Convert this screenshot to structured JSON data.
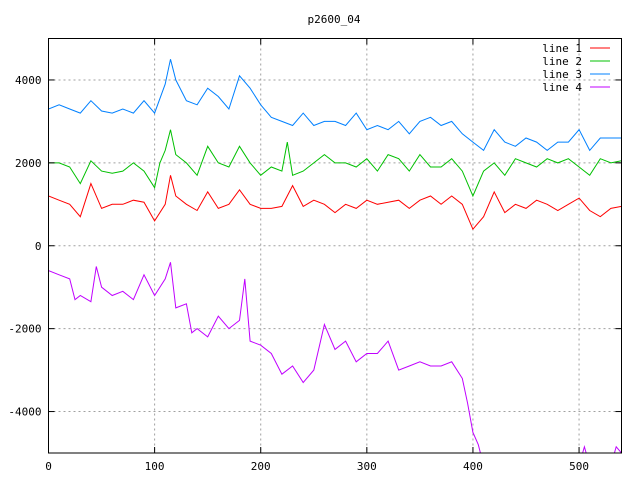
{
  "chart_data": {
    "type": "line",
    "title": "p2600_04",
    "xlabel": "",
    "ylabel": "",
    "xlim": [
      0,
      540
    ],
    "ylim": [
      -5000,
      5000
    ],
    "xticks": [
      0,
      100,
      200,
      300,
      400,
      500
    ],
    "yticks": [
      -4000,
      -2000,
      0,
      2000,
      4000
    ],
    "grid": true,
    "legend_position": "top-right",
    "series": [
      {
        "name": "line 1",
        "color": "#ff0000",
        "points": [
          [
            0,
            1200
          ],
          [
            10,
            1100
          ],
          [
            20,
            1000
          ],
          [
            30,
            700
          ],
          [
            40,
            1500
          ],
          [
            50,
            900
          ],
          [
            60,
            1000
          ],
          [
            70,
            1000
          ],
          [
            80,
            1100
          ],
          [
            90,
            1050
          ],
          [
            100,
            600
          ],
          [
            110,
            1000
          ],
          [
            115,
            1700
          ],
          [
            120,
            1200
          ],
          [
            130,
            1000
          ],
          [
            140,
            850
          ],
          [
            150,
            1300
          ],
          [
            160,
            900
          ],
          [
            170,
            1000
          ],
          [
            180,
            1350
          ],
          [
            190,
            1000
          ],
          [
            200,
            900
          ],
          [
            210,
            900
          ],
          [
            220,
            950
          ],
          [
            230,
            1450
          ],
          [
            240,
            950
          ],
          [
            250,
            1100
          ],
          [
            260,
            1000
          ],
          [
            270,
            800
          ],
          [
            280,
            1000
          ],
          [
            290,
            900
          ],
          [
            300,
            1100
          ],
          [
            310,
            1000
          ],
          [
            320,
            1050
          ],
          [
            330,
            1100
          ],
          [
            340,
            900
          ],
          [
            350,
            1100
          ],
          [
            360,
            1200
          ],
          [
            370,
            1000
          ],
          [
            380,
            1200
          ],
          [
            390,
            1000
          ],
          [
            400,
            400
          ],
          [
            410,
            700
          ],
          [
            420,
            1300
          ],
          [
            430,
            800
          ],
          [
            440,
            1000
          ],
          [
            450,
            900
          ],
          [
            460,
            1100
          ],
          [
            470,
            1000
          ],
          [
            480,
            850
          ],
          [
            490,
            1000
          ],
          [
            500,
            1150
          ],
          [
            510,
            850
          ],
          [
            520,
            700
          ],
          [
            530,
            900
          ],
          [
            540,
            950
          ]
        ]
      },
      {
        "name": "line 2",
        "color": "#00c000",
        "points": [
          [
            0,
            2000
          ],
          [
            10,
            2000
          ],
          [
            20,
            1900
          ],
          [
            30,
            1500
          ],
          [
            40,
            2050
          ],
          [
            50,
            1800
          ],
          [
            60,
            1750
          ],
          [
            70,
            1800
          ],
          [
            80,
            2000
          ],
          [
            90,
            1800
          ],
          [
            100,
            1400
          ],
          [
            105,
            2000
          ],
          [
            110,
            2300
          ],
          [
            115,
            2800
          ],
          [
            120,
            2200
          ],
          [
            130,
            2000
          ],
          [
            140,
            1700
          ],
          [
            150,
            2400
          ],
          [
            160,
            2000
          ],
          [
            170,
            1900
          ],
          [
            180,
            2400
          ],
          [
            190,
            2000
          ],
          [
            200,
            1700
          ],
          [
            210,
            1900
          ],
          [
            220,
            1800
          ],
          [
            225,
            2500
          ],
          [
            230,
            1700
          ],
          [
            240,
            1800
          ],
          [
            250,
            2000
          ],
          [
            260,
            2200
          ],
          [
            270,
            2000
          ],
          [
            280,
            2000
          ],
          [
            290,
            1900
          ],
          [
            300,
            2100
          ],
          [
            310,
            1800
          ],
          [
            320,
            2200
          ],
          [
            330,
            2100
          ],
          [
            340,
            1800
          ],
          [
            350,
            2200
          ],
          [
            360,
            1900
          ],
          [
            370,
            1900
          ],
          [
            380,
            2100
          ],
          [
            390,
            1800
          ],
          [
            400,
            1200
          ],
          [
            410,
            1800
          ],
          [
            420,
            2000
          ],
          [
            430,
            1700
          ],
          [
            440,
            2100
          ],
          [
            450,
            2000
          ],
          [
            460,
            1900
          ],
          [
            470,
            2100
          ],
          [
            480,
            2000
          ],
          [
            490,
            2100
          ],
          [
            500,
            1900
          ],
          [
            510,
            1700
          ],
          [
            520,
            2100
          ],
          [
            530,
            2000
          ],
          [
            540,
            2050
          ]
        ]
      },
      {
        "name": "line 3",
        "color": "#0080ff",
        "points": [
          [
            0,
            3300
          ],
          [
            10,
            3400
          ],
          [
            20,
            3300
          ],
          [
            30,
            3200
          ],
          [
            40,
            3500
          ],
          [
            50,
            3250
          ],
          [
            60,
            3200
          ],
          [
            70,
            3300
          ],
          [
            80,
            3200
          ],
          [
            90,
            3500
          ],
          [
            100,
            3200
          ],
          [
            110,
            3900
          ],
          [
            115,
            4500
          ],
          [
            120,
            4000
          ],
          [
            130,
            3500
          ],
          [
            140,
            3400
          ],
          [
            150,
            3800
          ],
          [
            160,
            3600
          ],
          [
            170,
            3300
          ],
          [
            180,
            4100
          ],
          [
            190,
            3800
          ],
          [
            200,
            3400
          ],
          [
            210,
            3100
          ],
          [
            220,
            3000
          ],
          [
            230,
            2900
          ],
          [
            240,
            3200
          ],
          [
            250,
            2900
          ],
          [
            260,
            3000
          ],
          [
            270,
            3000
          ],
          [
            280,
            2900
          ],
          [
            290,
            3200
          ],
          [
            300,
            2800
          ],
          [
            310,
            2900
          ],
          [
            320,
            2800
          ],
          [
            330,
            3000
          ],
          [
            340,
            2700
          ],
          [
            350,
            3000
          ],
          [
            360,
            3100
          ],
          [
            370,
            2900
          ],
          [
            380,
            3000
          ],
          [
            390,
            2700
          ],
          [
            400,
            2500
          ],
          [
            410,
            2300
          ],
          [
            420,
            2800
          ],
          [
            430,
            2500
          ],
          [
            440,
            2400
          ],
          [
            450,
            2600
          ],
          [
            460,
            2500
          ],
          [
            470,
            2300
          ],
          [
            480,
            2500
          ],
          [
            490,
            2500
          ],
          [
            500,
            2800
          ],
          [
            510,
            2300
          ],
          [
            520,
            2600
          ],
          [
            530,
            2600
          ],
          [
            540,
            2600
          ]
        ]
      },
      {
        "name": "line 4",
        "color": "#c000ff",
        "points": [
          [
            0,
            -600
          ],
          [
            10,
            -700
          ],
          [
            20,
            -800
          ],
          [
            25,
            -1300
          ],
          [
            30,
            -1200
          ],
          [
            40,
            -1350
          ],
          [
            45,
            -500
          ],
          [
            50,
            -1000
          ],
          [
            60,
            -1200
          ],
          [
            70,
            -1100
          ],
          [
            80,
            -1300
          ],
          [
            90,
            -700
          ],
          [
            100,
            -1200
          ],
          [
            110,
            -800
          ],
          [
            115,
            -400
          ],
          [
            120,
            -1500
          ],
          [
            130,
            -1400
          ],
          [
            135,
            -2100
          ],
          [
            140,
            -2000
          ],
          [
            150,
            -2200
          ],
          [
            160,
            -1700
          ],
          [
            170,
            -2000
          ],
          [
            180,
            -1800
          ],
          [
            185,
            -800
          ],
          [
            190,
            -2300
          ],
          [
            200,
            -2400
          ],
          [
            210,
            -2600
          ],
          [
            220,
            -3100
          ],
          [
            230,
            -2900
          ],
          [
            240,
            -3300
          ],
          [
            250,
            -3000
          ],
          [
            260,
            -1900
          ],
          [
            270,
            -2500
          ],
          [
            280,
            -2300
          ],
          [
            290,
            -2800
          ],
          [
            300,
            -2600
          ],
          [
            310,
            -2600
          ],
          [
            320,
            -2300
          ],
          [
            330,
            -3000
          ],
          [
            340,
            -2900
          ],
          [
            350,
            -2800
          ],
          [
            360,
            -2900
          ],
          [
            370,
            -2900
          ],
          [
            380,
            -2800
          ],
          [
            390,
            -3200
          ],
          [
            395,
            -3800
          ],
          [
            400,
            -4500
          ],
          [
            405,
            -4800
          ],
          [
            410,
            -5300
          ],
          [
            500,
            -5300
          ],
          [
            505,
            -4850
          ],
          [
            510,
            -5300
          ],
          [
            530,
            -5300
          ],
          [
            535,
            -4850
          ],
          [
            540,
            -5000
          ]
        ]
      }
    ]
  }
}
